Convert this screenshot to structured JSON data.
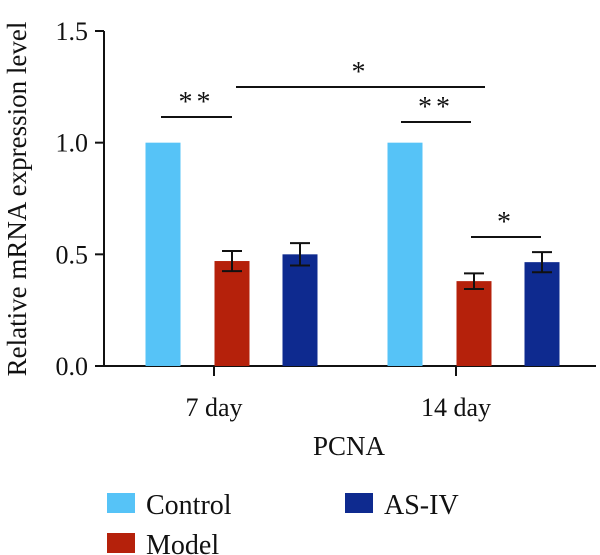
{
  "chart_data": {
    "type": "bar",
    "title": "",
    "xlabel": "PCNA",
    "ylabel": "Relative mRNA expression level",
    "ylim": [
      0,
      1.5
    ],
    "yticks": [
      0.0,
      0.5,
      1.0,
      1.5
    ],
    "ytick_labels": [
      "0.0",
      "0.5",
      "1.0",
      "1.5"
    ],
    "categories": [
      "7 day",
      "14 day"
    ],
    "series": [
      {
        "name": "Control",
        "color": "#56c3f7",
        "values": [
          1.0,
          1.0
        ],
        "errors": [
          0,
          0
        ]
      },
      {
        "name": "Model",
        "color": "#b5210b",
        "values": [
          0.47,
          0.38
        ],
        "errors": [
          0.045,
          0.035
        ]
      },
      {
        "name": "AS-IV",
        "color": "#0e2a8f",
        "values": [
          0.5,
          0.465
        ],
        "errors": [
          0.05,
          0.045
        ]
      }
    ],
    "legend_position": "bottom",
    "significance": [
      {
        "label": "**",
        "from": "7 day / Control",
        "to": "7 day / Model"
      },
      {
        "label": "*",
        "from": "7 day / Model",
        "to": "14 day / Model"
      },
      {
        "label": "**",
        "from": "14 day / Control",
        "to": "14 day / Model"
      },
      {
        "label": "*",
        "from": "14 day / Model",
        "to": "14 day / AS-IV"
      }
    ]
  }
}
